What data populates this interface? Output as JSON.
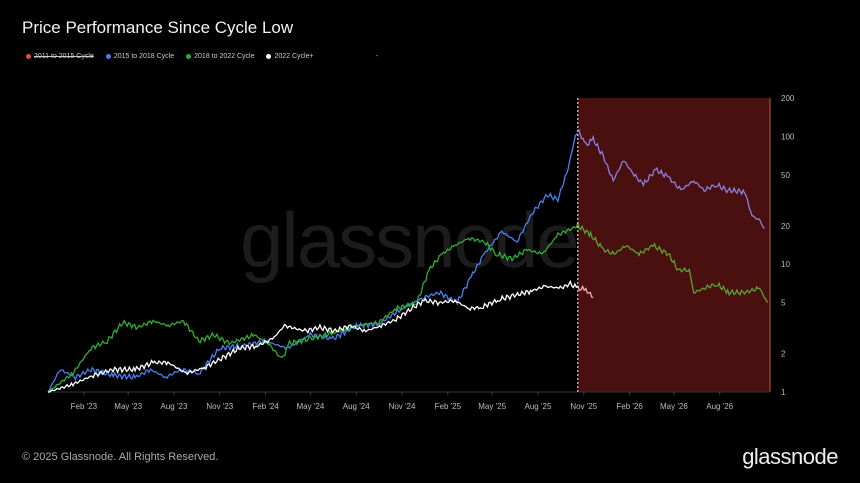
{
  "chart_data": {
    "type": "line",
    "title": "Price Performance Since Cycle Low",
    "y_scale": "log",
    "ylim": [
      1,
      200
    ],
    "y_ticks": [
      1,
      2,
      5,
      10,
      20,
      50,
      100,
      200
    ],
    "x_ticks": [
      "Feb '23",
      "May '23",
      "Aug '23",
      "Nov '23",
      "Feb '24",
      "May '24",
      "Aug '24",
      "Nov '24",
      "Feb '25",
      "May '25",
      "Aug '25",
      "Nov '25",
      "Feb '26",
      "May '26",
      "Aug '26"
    ],
    "x_tick_dates": [
      "2023-02",
      "2023-05",
      "2023-08",
      "2023-11",
      "2024-02",
      "2024-05",
      "2024-08",
      "2024-11",
      "2025-02",
      "2025-05",
      "2025-08",
      "2025-11",
      "2026-02",
      "2026-05",
      "2026-08"
    ],
    "xlim": [
      "2022-11-21",
      "2026-11-10"
    ],
    "highlight_region": {
      "start": "2025-10-20",
      "end": "2026-11-10",
      "color": "#4a1010"
    },
    "marker_line": "2025-10-20",
    "grid": false,
    "legend_placement": "top-left",
    "series": [
      {
        "name": "2011 to 2015 Cycle",
        "color": "#e84a4a",
        "hidden": true,
        "points": []
      },
      {
        "name": "2015 to 2018 Cycle",
        "color": "#4a7ff0",
        "shaded_color": "#8a7fe0",
        "points": [
          [
            "2022-11-21",
            1.0
          ],
          [
            "2022-12-15",
            1.5
          ],
          [
            "2023-01-15",
            1.3
          ],
          [
            "2023-02-15",
            1.5
          ],
          [
            "2023-04-01",
            1.35
          ],
          [
            "2023-05-15",
            1.3
          ],
          [
            "2023-06-15",
            1.5
          ],
          [
            "2023-07-15",
            1.3
          ],
          [
            "2023-08-15",
            1.5
          ],
          [
            "2023-09-20",
            1.4
          ],
          [
            "2023-11-01",
            2.2
          ],
          [
            "2023-12-15",
            2.3
          ],
          [
            "2024-02-01",
            2.5
          ],
          [
            "2024-03-15",
            2.2
          ],
          [
            "2024-05-01",
            2.8
          ],
          [
            "2024-06-15",
            2.6
          ],
          [
            "2024-08-01",
            3.3
          ],
          [
            "2024-09-15",
            3.4
          ],
          [
            "2024-11-01",
            4.5
          ],
          [
            "2024-12-15",
            5.5
          ],
          [
            "2025-01-15",
            6
          ],
          [
            "2025-02-20",
            5
          ],
          [
            "2025-03-20",
            8
          ],
          [
            "2025-04-15",
            12
          ],
          [
            "2025-05-20",
            18
          ],
          [
            "2025-06-20",
            15
          ],
          [
            "2025-07-20",
            25
          ],
          [
            "2025-08-20",
            35
          ],
          [
            "2025-09-10",
            32
          ],
          [
            "2025-09-30",
            55
          ],
          [
            "2025-10-15",
            100
          ],
          [
            "2025-10-22",
            110
          ],
          [
            "2025-11-05",
            85
          ],
          [
            "2025-11-20",
            95
          ],
          [
            "2025-12-10",
            70
          ],
          [
            "2025-12-30",
            45
          ],
          [
            "2026-01-20",
            65
          ],
          [
            "2026-02-10",
            50
          ],
          [
            "2026-03-01",
            42
          ],
          [
            "2026-03-25",
            55
          ],
          [
            "2026-04-20",
            48
          ],
          [
            "2026-05-15",
            38
          ],
          [
            "2026-06-10",
            45
          ],
          [
            "2026-07-01",
            38
          ],
          [
            "2026-07-25",
            42
          ],
          [
            "2026-08-15",
            38
          ],
          [
            "2026-09-20",
            37
          ],
          [
            "2026-10-05",
            24
          ],
          [
            "2026-10-20",
            22
          ],
          [
            "2026-10-30",
            19
          ]
        ]
      },
      {
        "name": "2018 to 2022 Cycle",
        "color": "#2fae2f",
        "shaded_color": "#5aa030",
        "points": [
          [
            "2022-11-21",
            1.0
          ],
          [
            "2023-01-10",
            1.4
          ],
          [
            "2023-02-15",
            2.2
          ],
          [
            "2023-03-20",
            2.5
          ],
          [
            "2023-04-20",
            3.5
          ],
          [
            "2023-05-20",
            3.2
          ],
          [
            "2023-06-20",
            3.6
          ],
          [
            "2023-07-20",
            3.3
          ],
          [
            "2023-08-20",
            3.6
          ],
          [
            "2023-09-20",
            2.5
          ],
          [
            "2023-10-20",
            2.8
          ],
          [
            "2023-11-20",
            2.4
          ],
          [
            "2024-01-10",
            2.8
          ],
          [
            "2024-02-10",
            2.3
          ],
          [
            "2024-03-05",
            1.8
          ],
          [
            "2024-03-20",
            2.4
          ],
          [
            "2024-05-01",
            2.6
          ],
          [
            "2024-06-15",
            2.9
          ],
          [
            "2024-08-01",
            3.3
          ],
          [
            "2024-09-15",
            3.5
          ],
          [
            "2024-10-20",
            4.5
          ],
          [
            "2024-12-01",
            5
          ],
          [
            "2024-12-25",
            9
          ],
          [
            "2025-01-20",
            12
          ],
          [
            "2025-02-15",
            14
          ],
          [
            "2025-03-15",
            16
          ],
          [
            "2025-04-15",
            15
          ],
          [
            "2025-05-10",
            12
          ],
          [
            "2025-06-10",
            11
          ],
          [
            "2025-07-10",
            13
          ],
          [
            "2025-08-10",
            12
          ],
          [
            "2025-09-10",
            17
          ],
          [
            "2025-10-20",
            20
          ],
          [
            "2025-11-15",
            17
          ],
          [
            "2025-12-10",
            13
          ],
          [
            "2026-01-01",
            12
          ],
          [
            "2026-01-25",
            14
          ],
          [
            "2026-02-20",
            12
          ],
          [
            "2026-03-20",
            14
          ],
          [
            "2026-04-20",
            12
          ],
          [
            "2026-05-10",
            9
          ],
          [
            "2026-06-01",
            9
          ],
          [
            "2026-06-10",
            6
          ],
          [
            "2026-07-01",
            6.5
          ],
          [
            "2026-07-25",
            7
          ],
          [
            "2026-08-20",
            6
          ],
          [
            "2026-09-20",
            6
          ],
          [
            "2026-10-20",
            6.5
          ],
          [
            "2026-11-05",
            5
          ]
        ]
      },
      {
        "name": "2022 Cycle+",
        "color": "#ffffff",
        "shaded_color": "#f0b0b0",
        "points": [
          [
            "2022-11-21",
            1.0
          ],
          [
            "2023-01-10",
            1.15
          ],
          [
            "2023-02-20",
            1.35
          ],
          [
            "2023-04-01",
            1.5
          ],
          [
            "2023-05-15",
            1.5
          ],
          [
            "2023-06-20",
            1.7
          ],
          [
            "2023-07-20",
            1.7
          ],
          [
            "2023-08-25",
            1.4
          ],
          [
            "2023-10-01",
            1.55
          ],
          [
            "2023-11-01",
            1.8
          ],
          [
            "2023-12-10",
            2.2
          ],
          [
            "2024-01-15",
            2.3
          ],
          [
            "2024-02-15",
            2.6
          ],
          [
            "2024-03-10",
            3.3
          ],
          [
            "2024-04-20",
            3.0
          ],
          [
            "2024-05-20",
            3.2
          ],
          [
            "2024-06-20",
            3.0
          ],
          [
            "2024-07-20",
            3.3
          ],
          [
            "2024-08-20",
            3.0
          ],
          [
            "2024-09-20",
            3.3
          ],
          [
            "2024-10-20",
            3.7
          ],
          [
            "2024-11-20",
            4.5
          ],
          [
            "2024-12-15",
            5.2
          ],
          [
            "2025-01-15",
            5.0
          ],
          [
            "2025-02-15",
            5.2
          ],
          [
            "2025-03-15",
            4.5
          ],
          [
            "2025-04-10",
            4.6
          ],
          [
            "2025-05-15",
            5.3
          ],
          [
            "2025-06-15",
            5.7
          ],
          [
            "2025-07-20",
            6.2
          ],
          [
            "2025-08-15",
            6.7
          ],
          [
            "2025-09-15",
            6.5
          ],
          [
            "2025-10-05",
            7.0
          ],
          [
            "2025-10-20",
            6.5
          ],
          [
            "2025-11-05",
            6.3
          ],
          [
            "2025-11-20",
            5.5
          ]
        ]
      }
    ]
  },
  "legend": [
    {
      "label": "2011 to 2015 Cycle",
      "color": "#e84a4a",
      "struck": true
    },
    {
      "label": "2015 to 2018 Cycle",
      "color": "#4a7ff0"
    },
    {
      "label": "2018 to 2022 Cycle",
      "color": "#2fae2f"
    },
    {
      "label": "2022 Cycle+",
      "color": "#ffffff"
    },
    {
      "label": "-"
    }
  ],
  "watermark": "glassnode",
  "footer": {
    "copyright": "© 2025 Glassnode. All Rights Reserved.",
    "brand": "glassnode"
  }
}
